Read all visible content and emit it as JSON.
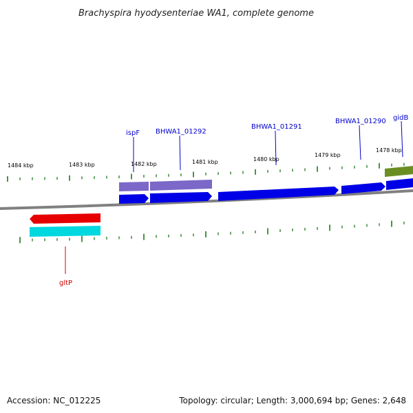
{
  "title": "Brachyspira hyodysenteriae WA1, complete genome",
  "footer": {
    "accession": "Accession: NC_012225",
    "summary": "Topology: circular; Length: 3,000,694 bp; Genes: 2,648"
  },
  "colors": {
    "backbone": "#808080",
    "tick": "#1a7a1a",
    "cds_forward": "#0000e6",
    "cds_reverse": "#e60000",
    "gene_forward": "#7b68c8",
    "gene_reverse": "#00d8e0",
    "gene_other": "#6b8e23",
    "label_forward": "#0000cc",
    "label_reverse": "#cc0000"
  },
  "kbp_labels": [
    "1484 kbp",
    "1483 kbp",
    "1482 kbp",
    "1481 kbp",
    "1480 kbp",
    "1479 kbp",
    "1478 kbp"
  ],
  "gene_labels": [
    {
      "text": "ispF",
      "strand": "forward"
    },
    {
      "text": "BHWA1_01292",
      "strand": "forward"
    },
    {
      "text": "BHWA1_01291",
      "strand": "forward"
    },
    {
      "text": "BHWA1_01290",
      "strand": "forward"
    },
    {
      "text": "gidB",
      "strand": "forward"
    },
    {
      "text": "gltP",
      "strand": "reverse"
    }
  ]
}
